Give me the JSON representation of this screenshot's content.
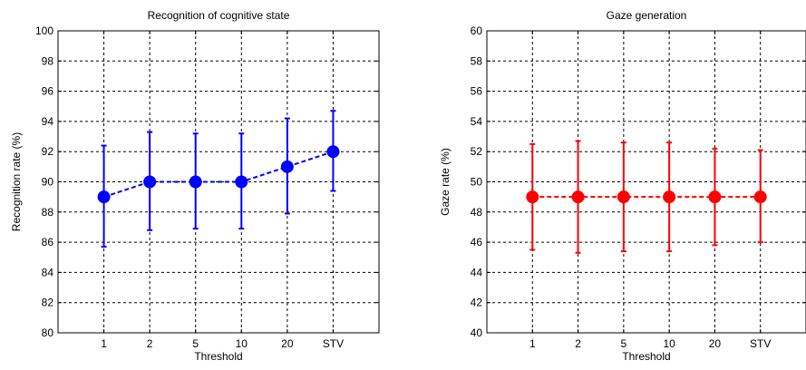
{
  "chart_data": [
    {
      "type": "line",
      "title": "Recognition of cognitive state",
      "xlabel": "Threshold",
      "ylabel": "Recognition rate (%)",
      "categories": [
        "1",
        "2",
        "5",
        "10",
        "20",
        "STV"
      ],
      "ylim": [
        80,
        100
      ],
      "yticks": [
        80,
        82,
        84,
        86,
        88,
        90,
        92,
        94,
        96,
        98,
        100
      ],
      "grid": true,
      "color": "#0000ff",
      "series": [
        {
          "values": [
            89,
            90,
            90,
            90,
            91,
            92
          ],
          "err_low": [
            85.7,
            86.8,
            86.9,
            86.9,
            87.9,
            89.4
          ],
          "err_high": [
            92.4,
            93.3,
            93.2,
            93.2,
            94.2,
            94.7
          ]
        }
      ]
    },
    {
      "type": "line",
      "title": "Gaze generation",
      "xlabel": "Threshold",
      "ylabel": "Gaze rate (%)",
      "categories": [
        "1",
        "2",
        "5",
        "10",
        "20",
        "STV"
      ],
      "ylim": [
        40,
        60
      ],
      "yticks": [
        40,
        42,
        44,
        46,
        48,
        50,
        52,
        54,
        56,
        58,
        60
      ],
      "grid": true,
      "color": "#ff0000",
      "series": [
        {
          "values": [
            49,
            49,
            49,
            49,
            49,
            49
          ],
          "err_low": [
            45.5,
            45.3,
            45.4,
            45.4,
            45.8,
            46.0
          ],
          "err_high": [
            52.5,
            52.7,
            52.6,
            52.6,
            52.2,
            52.1
          ]
        }
      ]
    }
  ]
}
